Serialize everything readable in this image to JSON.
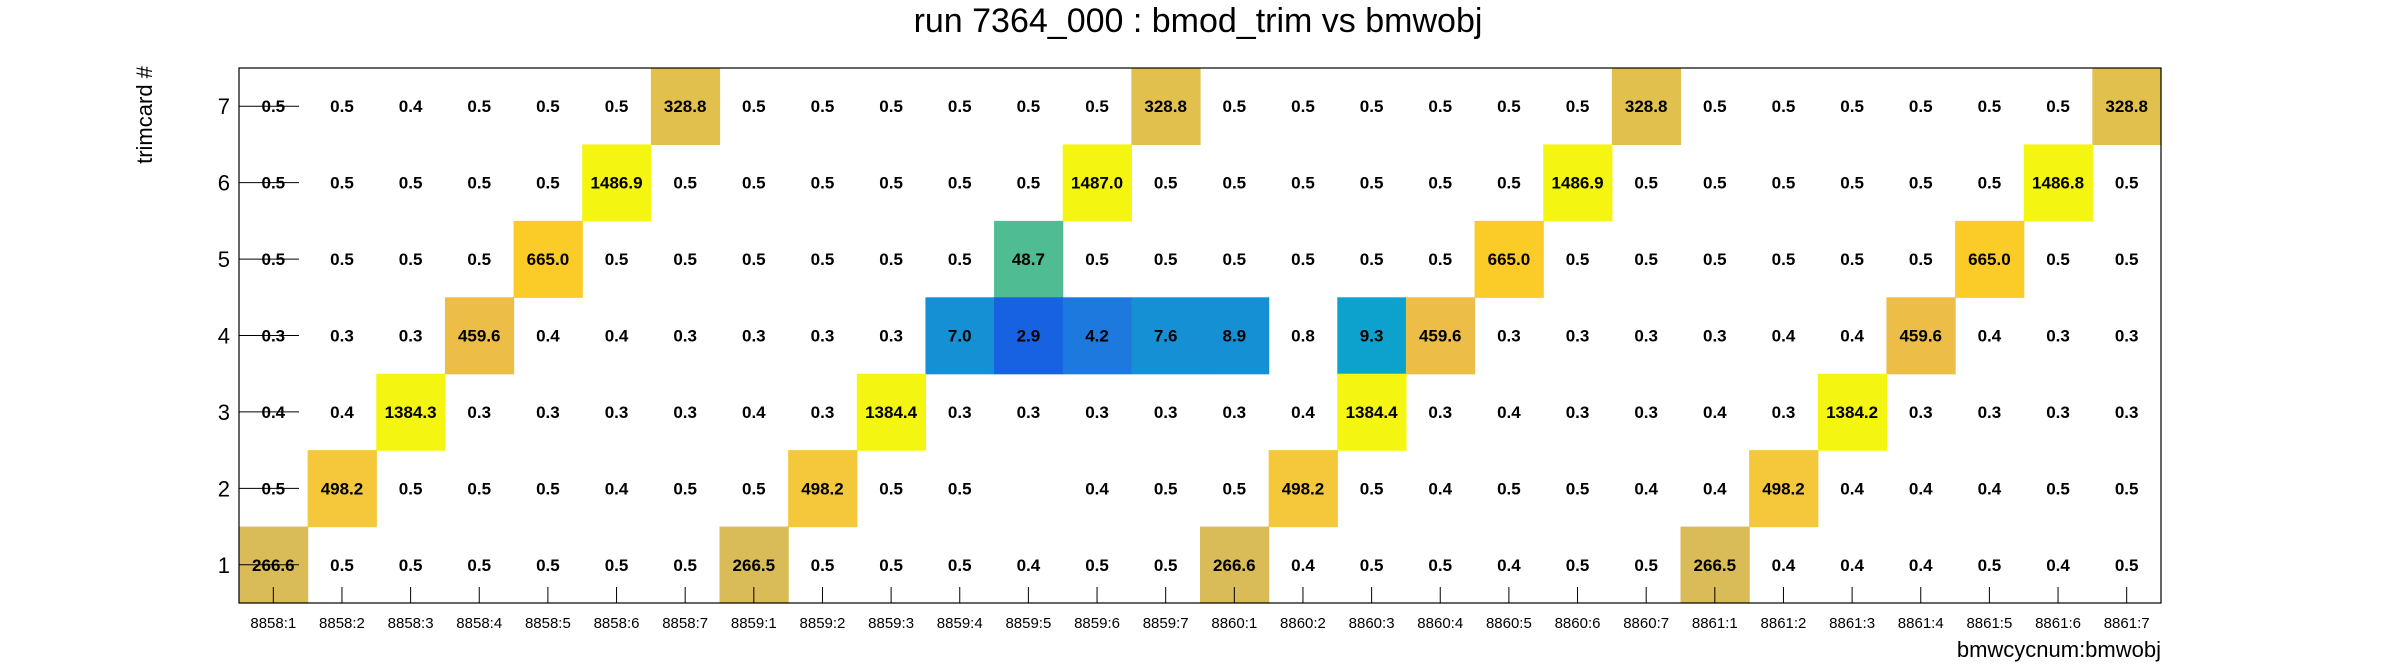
{
  "chart_data": {
    "type": "heatmap",
    "title": "run 7364_000 : bmod_trim vs bmwobj",
    "xlabel": "bmwcycnum:bmwobj",
    "ylabel": "trimcard #",
    "x_categories": [
      "8858:1",
      "8858:2",
      "8858:3",
      "8858:4",
      "8858:5",
      "8858:6",
      "8858:7",
      "8859:1",
      "8859:2",
      "8859:3",
      "8859:4",
      "8859:5",
      "8859:6",
      "8859:7",
      "8860:1",
      "8860:2",
      "8860:3",
      "8860:4",
      "8860:5",
      "8860:6",
      "8860:7",
      "8861:1",
      "8861:2",
      "8861:3",
      "8861:4",
      "8861:5",
      "8861:6",
      "8861:7"
    ],
    "y_categories": [
      "1",
      "2",
      "3",
      "4",
      "5",
      "6",
      "7"
    ],
    "rows": [
      {
        "y": "7",
        "values": [
          "0.5",
          "0.5",
          "0.4",
          "0.5",
          "0.5",
          "0.5",
          "328.8",
          "0.5",
          "0.5",
          "0.5",
          "0.5",
          "0.5",
          "0.5",
          "328.8",
          "0.5",
          "0.5",
          "0.5",
          "0.5",
          "0.5",
          "0.5",
          "328.8",
          "0.5",
          "0.5",
          "0.5",
          "0.5",
          "0.5",
          "0.5",
          "328.8"
        ]
      },
      {
        "y": "6",
        "values": [
          "0.5",
          "0.5",
          "0.5",
          "0.5",
          "0.5",
          "1486.9",
          "0.5",
          "0.5",
          "0.5",
          "0.5",
          "0.5",
          "0.5",
          "1487.0",
          "0.5",
          "0.5",
          "0.5",
          "0.5",
          "0.5",
          "0.5",
          "1486.9",
          "0.5",
          "0.5",
          "0.5",
          "0.5",
          "0.5",
          "0.5",
          "1486.8",
          "0.5"
        ]
      },
      {
        "y": "5",
        "values": [
          "0.5",
          "0.5",
          "0.5",
          "0.5",
          "665.0",
          "0.5",
          "0.5",
          "0.5",
          "0.5",
          "0.5",
          "0.5",
          "48.7",
          "0.5",
          "0.5",
          "0.5",
          "0.5",
          "0.5",
          "0.5",
          "665.0",
          "0.5",
          "0.5",
          "0.5",
          "0.5",
          "0.5",
          "0.5",
          "665.0",
          "0.5",
          "0.5"
        ]
      },
      {
        "y": "4",
        "values": [
          "0.3",
          "0.3",
          "0.3",
          "459.6",
          "0.4",
          "0.4",
          "0.3",
          "0.3",
          "0.3",
          "0.3",
          "7.0",
          "2.9",
          "4.2",
          "7.6",
          "8.9",
          "0.8",
          "9.3",
          "459.6",
          "0.3",
          "0.3",
          "0.3",
          "0.3",
          "0.4",
          "0.4",
          "459.6",
          "0.4",
          "0.3",
          "0.3"
        ]
      },
      {
        "y": "3",
        "values": [
          "0.4",
          "0.4",
          "1384.3",
          "0.3",
          "0.3",
          "0.3",
          "0.3",
          "0.4",
          "0.3",
          "1384.4",
          "0.3",
          "0.3",
          "0.3",
          "0.3",
          "0.3",
          "0.4",
          "1384.4",
          "0.3",
          "0.4",
          "0.3",
          "0.3",
          "0.4",
          "0.3",
          "1384.2",
          "0.3",
          "0.3",
          "0.3",
          "0.3"
        ]
      },
      {
        "y": "2",
        "values": [
          "0.5",
          "498.2",
          "0.5",
          "0.5",
          "0.5",
          "0.4",
          "0.5",
          "0.5",
          "498.2",
          "0.5",
          "0.5",
          "",
          "0.4",
          "0.5",
          "0.5",
          "498.2",
          "0.5",
          "0.4",
          "0.5",
          "0.5",
          "0.4",
          "0.4",
          "498.2",
          "0.4",
          "0.4",
          "0.4",
          "0.5",
          "0.5"
        ]
      },
      {
        "y": "1",
        "values": [
          "266.6",
          "0.5",
          "0.5",
          "0.5",
          "0.5",
          "0.5",
          "0.5",
          "266.5",
          "0.5",
          "0.5",
          "0.5",
          "0.4",
          "0.5",
          "0.5",
          "266.6",
          "0.4",
          "0.5",
          "0.5",
          "0.4",
          "0.5",
          "0.5",
          "266.5",
          "0.4",
          "0.4",
          "0.4",
          "0.5",
          "0.4",
          "0.5"
        ]
      }
    ],
    "colors": {
      "very_high": "#f5f512",
      "high_665": "#fbcc28",
      "high_498": "#f4c83a",
      "mid_459": "#ecbd47",
      "mid_328": "#e1c04d",
      "mid_266": "#d9bb58",
      "teal_48": "#4fbc94",
      "cyan_9": "#0da1cd",
      "blue_7": "#1590d5",
      "blue_4": "#1e79df",
      "blue_3": "#1762e0"
    }
  }
}
